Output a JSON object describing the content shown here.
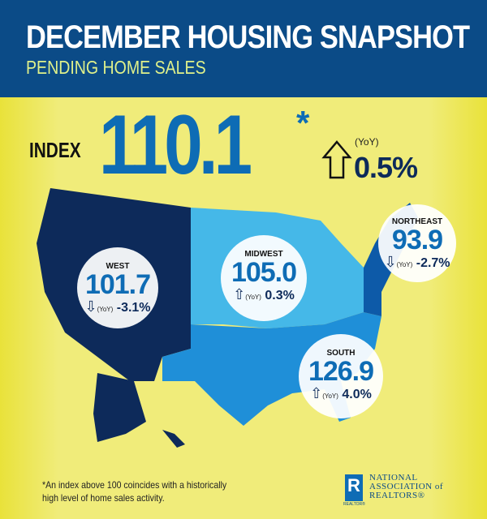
{
  "header": {
    "title": "DECEMBER  HOUSING SNAPSHOT",
    "subtitle": "PENDING HOME SALES"
  },
  "national": {
    "label": "INDEX",
    "value": "110.1",
    "footnote_mark": "*",
    "yoy_label": "(YoY)",
    "yoy_change": "0.5%",
    "direction": "up"
  },
  "colors": {
    "header": "#0b4b87",
    "background": "#f0ec7a",
    "west": "#0d2a5a",
    "midwest": "#45b8e8",
    "south": "#1f8fd8",
    "northeast": "#0d5aa8",
    "value": "#0e6cb5"
  },
  "regions": [
    {
      "name": "WEST",
      "value": "101.7",
      "yoy_label": "(YoY)",
      "change": "-3.1%",
      "direction": "down"
    },
    {
      "name": "MIDWEST",
      "value": "105.0",
      "yoy_label": "(YoY)",
      "change": "0.3%",
      "direction": "up"
    },
    {
      "name": "NORTHEAST",
      "value": "93.9",
      "yoy_label": "(YoY)",
      "change": "-2.7%",
      "direction": "down"
    },
    {
      "name": "SOUTH",
      "value": "126.9",
      "yoy_label": "(YoY)",
      "change": "4.0%",
      "direction": "up"
    }
  ],
  "footer": {
    "note": "*An index above 100 coincides with a historically high level of home sales activity.",
    "logo_letter": "R",
    "logo_text": [
      "NATIONAL",
      "ASSOCIATION of",
      "REALTORS®"
    ],
    "logo_sub": "REALTOR®"
  }
}
